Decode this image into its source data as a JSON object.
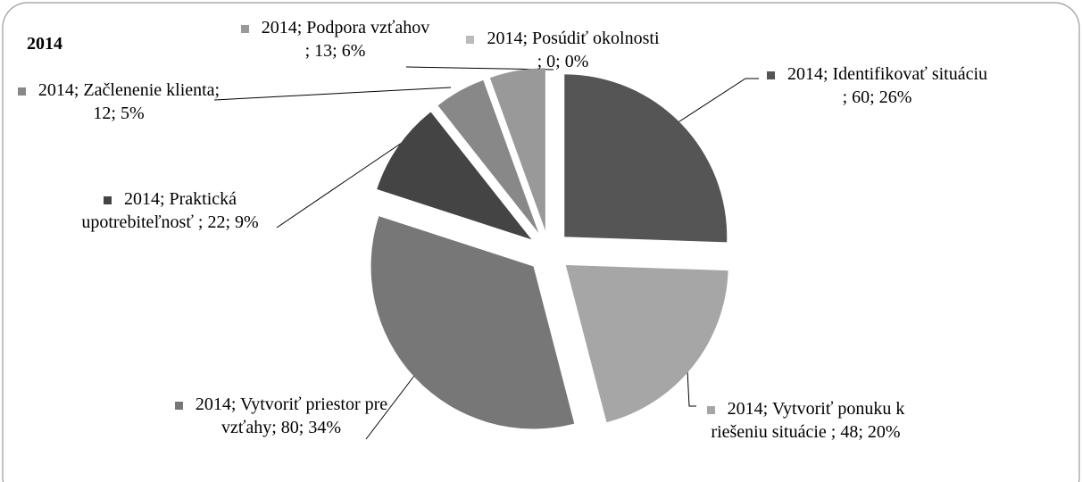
{
  "chart_data": {
    "type": "pie",
    "title": "2014",
    "values": [
      60,
      48,
      80,
      22,
      12,
      13,
      0
    ],
    "value_labels": [
      "2014; Identifikovať situáciu ; 60; 26%",
      "2014; Vytvoriť ponuku k riešeniu situácie ; 48; 20%",
      "2014; Vytvoriť priestor pre vzťahy; 80; 34%",
      "2014; Praktická upotrebiteľnosť ; 22; 9%",
      "2014; Začlenenie klienta; 12; 5%",
      "2014; Podpora vzťahov ; 13; 6%",
      "2014; Posúdiť okolnosti ; 0; 0%"
    ],
    "colors": [
      "#555555",
      "#a6a6a6",
      "#777777",
      "#444444",
      "#888888",
      "#999999",
      "#bbbbbb"
    ]
  }
}
